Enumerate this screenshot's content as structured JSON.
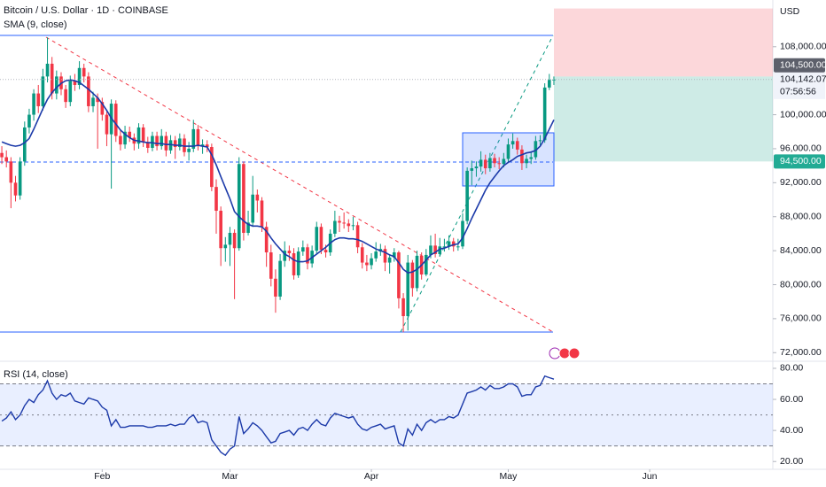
{
  "chart_data": [
    {
      "type": "candlestick",
      "title": "Bitcoin / U.S. Dollar · 1D · COINBASE",
      "currency": "USD",
      "up_color": "#089981",
      "down_color": "#f23645",
      "xlim": [
        -0.4,
        168.6
      ],
      "ylim": [
        71300,
        113500
      ],
      "yticks": [
        {
          "value": 108000,
          "label": "108,000.00"
        },
        {
          "value": 100000,
          "label": "100,000.00"
        },
        {
          "value": 96000,
          "label": "96,000.00"
        },
        {
          "value": 92000,
          "label": "92,000.00"
        },
        {
          "value": 88000,
          "label": "88,000.00"
        },
        {
          "value": 84000,
          "label": "84,000.00"
        },
        {
          "value": 80000,
          "label": "80,000.00"
        },
        {
          "value": 76000,
          "label": "76,000.00"
        },
        {
          "value": 72000,
          "label": "72,000.00"
        }
      ],
      "candles": [
        [
          95500,
          96300,
          94200,
          95000
        ],
        [
          95000,
          95800,
          93800,
          94500
        ],
        [
          94500,
          95000,
          89000,
          92000
        ],
        [
          92000,
          92800,
          89800,
          90500
        ],
        [
          90500,
          95000,
          90000,
          94500
        ],
        [
          94500,
          99200,
          94000,
          98500
        ],
        [
          98500,
          100700,
          97800,
          100000
        ],
        [
          100000,
          103000,
          99300,
          102500
        ],
        [
          102500,
          103500,
          100200,
          101000
        ],
        [
          101000,
          105400,
          100500,
          104500
        ],
        [
          104500,
          109100,
          103800,
          106000
        ],
        [
          106000,
          106800,
          101800,
          102500
        ],
        [
          102500,
          105200,
          101800,
          104500
        ],
        [
          104500,
          105000,
          102300,
          103000
        ],
        [
          103000,
          103500,
          100800,
          101500
        ],
        [
          101500,
          104600,
          101000,
          104000
        ],
        [
          104000,
          104800,
          102800,
          103500
        ],
        [
          103500,
          106300,
          103000,
          105500
        ],
        [
          105500,
          106000,
          103800,
          104500
        ],
        [
          104500,
          105000,
          100300,
          101000
        ],
        [
          101000,
          102700,
          100300,
          102000
        ],
        [
          102000,
          102500,
          96000,
          101500
        ],
        [
          101500,
          102000,
          99300,
          100000
        ],
        [
          100000,
          100500,
          96300,
          97700
        ],
        [
          97700,
          101800,
          91300,
          101300
        ],
        [
          101300,
          101700,
          96800,
          97500
        ],
        [
          97500,
          98200,
          95800,
          96500
        ],
        [
          96500,
          98700,
          96000,
          98000
        ],
        [
          98000,
          98600,
          96800,
          97300
        ],
        [
          97300,
          97800,
          95800,
          96600
        ],
        [
          96600,
          99000,
          96000,
          98500
        ],
        [
          98500,
          98900,
          96200,
          96800
        ],
        [
          96800,
          97400,
          95500,
          96100
        ],
        [
          96100,
          98000,
          95700,
          97500
        ],
        [
          97500,
          98000,
          95800,
          96300
        ],
        [
          96300,
          98300,
          95900,
          97500
        ],
        [
          97500,
          98000,
          95100,
          95800
        ],
        [
          95800,
          97600,
          95400,
          97000
        ],
        [
          97000,
          97500,
          94800,
          96200
        ],
        [
          96200,
          97800,
          95800,
          97200
        ],
        [
          97200,
          97700,
          95100,
          95600
        ],
        [
          95600,
          96800,
          94600,
          96000
        ],
        [
          96000,
          99400,
          95600,
          98300
        ],
        [
          98300,
          98800,
          95800,
          96300
        ],
        [
          96300,
          97100,
          95400,
          96500
        ],
        [
          96500,
          97000,
          95600,
          96200
        ],
        [
          96200,
          96600,
          91000,
          91500
        ],
        [
          91500,
          92400,
          86000,
          88700
        ],
        [
          88700,
          89200,
          82200,
          84300
        ],
        [
          84300,
          85600,
          82700,
          84700
        ],
        [
          84700,
          86800,
          82200,
          86100
        ],
        [
          86100,
          86500,
          78300,
          84300
        ],
        [
          84300,
          95000,
          84000,
          94200
        ],
        [
          94200,
          94500,
          85200,
          86100
        ],
        [
          86100,
          88700,
          85800,
          87300
        ],
        [
          87300,
          92800,
          86800,
          90600
        ],
        [
          90600,
          91200,
          88500,
          89900
        ],
        [
          89900,
          90300,
          86200,
          86800
        ],
        [
          86800,
          87400,
          82100,
          83800
        ],
        [
          83800,
          84700,
          79800,
          80700
        ],
        [
          80700,
          81800,
          76700,
          78600
        ],
        [
          78600,
          83600,
          78200,
          82800
        ],
        [
          82800,
          85100,
          82100,
          84000
        ],
        [
          84000,
          84600,
          82800,
          83700
        ],
        [
          83700,
          84300,
          80600,
          81100
        ],
        [
          81100,
          84400,
          80800,
          83900
        ],
        [
          83900,
          85200,
          83400,
          84400
        ],
        [
          84400,
          84800,
          81800,
          82500
        ],
        [
          82500,
          84600,
          82000,
          84000
        ],
        [
          84000,
          87400,
          83600,
          86800
        ],
        [
          86800,
          87200,
          83600,
          84100
        ],
        [
          84100,
          84700,
          83200,
          83800
        ],
        [
          83800,
          86500,
          83400,
          86000
        ],
        [
          86000,
          88700,
          85600,
          87500
        ],
        [
          87500,
          88100,
          86200,
          87300
        ],
        [
          87300,
          88500,
          86600,
          87200
        ],
        [
          87200,
          87700,
          86200,
          86900
        ],
        [
          86900,
          88000,
          86400,
          87000
        ],
        [
          87000,
          87400,
          83700,
          84400
        ],
        [
          84400,
          84900,
          81900,
          82600
        ],
        [
          82600,
          83500,
          81600,
          82300
        ],
        [
          82300,
          83700,
          81800,
          83100
        ],
        [
          83100,
          85000,
          82700,
          83900
        ],
        [
          83900,
          84800,
          83400,
          84200
        ],
        [
          84200,
          84600,
          81600,
          82600
        ],
        [
          82600,
          83600,
          81300,
          83200
        ],
        [
          83200,
          84300,
          82700,
          83800
        ],
        [
          83800,
          84000,
          77200,
          78400
        ],
        [
          78400,
          79000,
          74400,
          76300
        ],
        [
          76300,
          83500,
          74600,
          82600
        ],
        [
          82600,
          82900,
          78600,
          79600
        ],
        [
          79600,
          84000,
          79200,
          83400
        ],
        [
          83400,
          83800,
          80600,
          81200
        ],
        [
          81200,
          84200,
          81000,
          83500
        ],
        [
          83500,
          85800,
          83100,
          84600
        ],
        [
          84600,
          86000,
          83200,
          83600
        ],
        [
          83600,
          85500,
          83300,
          84500
        ],
        [
          84500,
          85400,
          83900,
          84500
        ],
        [
          84500,
          85800,
          84100,
          85100
        ],
        [
          85100,
          85500,
          83900,
          84500
        ],
        [
          84500,
          85400,
          84000,
          84500
        ],
        [
          84500,
          88400,
          84200,
          87500
        ],
        [
          87500,
          93800,
          87100,
          93400
        ],
        [
          93400,
          94600,
          91700,
          93700
        ],
        [
          93700,
          94500,
          92700,
          93900
        ],
        [
          93900,
          95700,
          93300,
          94700
        ],
        [
          94700,
          95300,
          93000,
          93700
        ],
        [
          93700,
          95500,
          93300,
          94900
        ],
        [
          94900,
          95400,
          93800,
          94300
        ],
        [
          94300,
          95000,
          93600,
          94200
        ],
        [
          94200,
          95500,
          93800,
          94800
        ],
        [
          94800,
          97200,
          94400,
          96500
        ],
        [
          96500,
          97800,
          96000,
          96900
        ],
        [
          96900,
          97300,
          95300,
          95900
        ],
        [
          95900,
          96400,
          93500,
          94300
        ],
        [
          94300,
          95300,
          93700,
          94800
        ],
        [
          94800,
          95700,
          94200,
          95000
        ],
        [
          95000,
          97500,
          94700,
          96900
        ],
        [
          96900,
          97600,
          96400,
          97000
        ],
        [
          97000,
          103700,
          96700,
          103200
        ],
        [
          103200,
          104800,
          102900,
          104100
        ],
        [
          104100,
          104500,
          103500,
          104142
        ]
      ],
      "series": [
        {
          "name": "SMA (9, close)",
          "color": "#1c3aa9",
          "values": [
            96800,
            96600,
            96400,
            96300,
            96400,
            96700,
            97200,
            98300,
            99500,
            100700,
            101800,
            102600,
            103200,
            103700,
            104000,
            104100,
            104000,
            103800,
            103400,
            103000,
            102500,
            102000,
            101300,
            100500,
            99600,
            98900,
            98200,
            97700,
            97300,
            97000,
            96900,
            96800,
            96700,
            96700,
            96600,
            96600,
            96500,
            96500,
            96400,
            96400,
            96300,
            96300,
            96300,
            96400,
            96300,
            96200,
            95300,
            94100,
            92700,
            91400,
            90100,
            88600,
            88000,
            87500,
            87100,
            86900,
            86900,
            86800,
            86300,
            85500,
            84800,
            84200,
            83600,
            83300,
            82900,
            82700,
            82700,
            82800,
            83200,
            83600,
            84000,
            84400,
            84900,
            85300,
            85500,
            85500,
            85400,
            85400,
            85300,
            85100,
            84800,
            84500,
            84200,
            84000,
            83800,
            83500,
            83300,
            82600,
            81800,
            81400,
            81500,
            81800,
            82300,
            82900,
            83500,
            83800,
            84200,
            84300,
            84500,
            84700,
            84800,
            85500,
            86600,
            87800,
            88900,
            90000,
            91100,
            92000,
            92700,
            93400,
            94000,
            94400,
            94700,
            95100,
            95300,
            95500,
            95600,
            95800,
            96300,
            97200,
            98300,
            99400
          ]
        }
      ],
      "target": 112500,
      "price_labels": [
        {
          "value": 104500,
          "label": "104,500.00",
          "color": "#5d606b"
        },
        {
          "value": 94500,
          "label": "94,500.00",
          "color": "#22ab94"
        }
      ],
      "last_price": {
        "value": 104142.07,
        "label": "104,142.07"
      },
      "countdown": "07:56:56"
    },
    {
      "type": "line",
      "title": "RSI (14, close)",
      "xlim": [
        -0.4,
        168.6
      ],
      "xticks": [
        {
          "value": 22,
          "label": "Feb"
        },
        {
          "value": 50,
          "label": "Mar"
        },
        {
          "value": 81,
          "label": "Apr"
        },
        {
          "value": 111,
          "label": "May"
        },
        {
          "value": 142,
          "label": "Jun"
        }
      ],
      "ylim": [
        15,
        83.4
      ],
      "yticks": [
        {
          "value": 80,
          "label": "80.00"
        },
        {
          "value": 60,
          "label": "60.00"
        },
        {
          "value": 40,
          "label": "40.00"
        },
        {
          "value": 20,
          "label": "20.00"
        }
      ],
      "levels": [
        70,
        50,
        30
      ],
      "series": [
        {
          "color": "#1c3aa9",
          "values": [
            46,
            48,
            52,
            47,
            50,
            56,
            60,
            58,
            63,
            66,
            72,
            64,
            60,
            63,
            62,
            64,
            59,
            58,
            57,
            61,
            60,
            59,
            55,
            53,
            43,
            47,
            42,
            42,
            43,
            43,
            43,
            43,
            42,
            42,
            43,
            43,
            43,
            44,
            43,
            44,
            44,
            48,
            50,
            45,
            46,
            45,
            34,
            30,
            26,
            24,
            28,
            30,
            49,
            38,
            41,
            45,
            43,
            40,
            36,
            32,
            33,
            38,
            39,
            40,
            37,
            41,
            42,
            40,
            44,
            47,
            44,
            43,
            48,
            51,
            50,
            49,
            48,
            49,
            44,
            41,
            40,
            42,
            43,
            44,
            41,
            42,
            43,
            32,
            30,
            41,
            37,
            44,
            40,
            45,
            47,
            45,
            47,
            47,
            49,
            48,
            50,
            57,
            64,
            65,
            66,
            68,
            66,
            69,
            67,
            67,
            68,
            70,
            70,
            68,
            62,
            63,
            63,
            68,
            69,
            75,
            74,
            73
          ]
        }
      ]
    }
  ]
}
